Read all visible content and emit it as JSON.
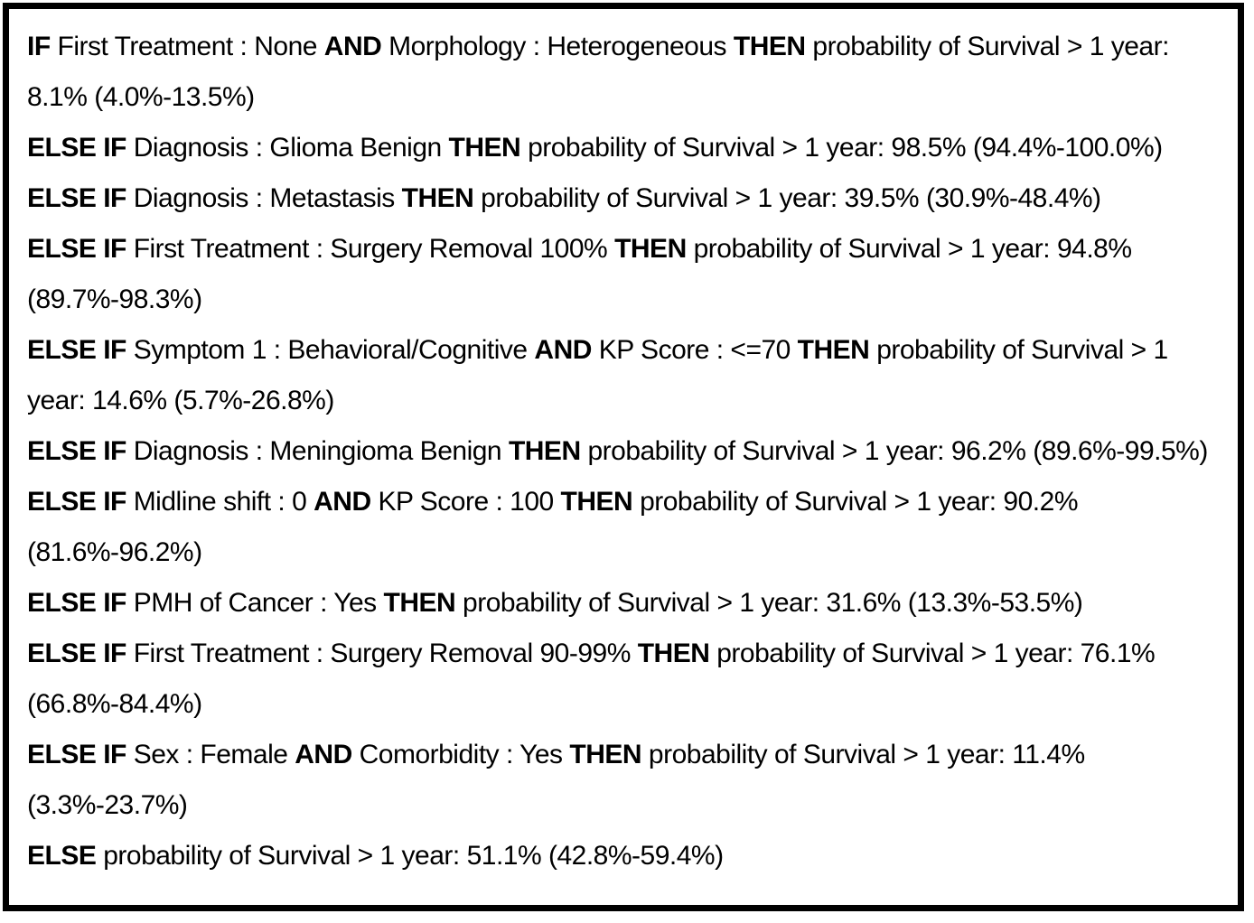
{
  "panel": {
    "description": "decision rule list for 1-year survival probability",
    "colors": {
      "background": "#ffffff",
      "border": "#000000",
      "text": "#000000"
    }
  },
  "keywords": {
    "if": "IF",
    "else_if": "ELSE IF",
    "else": "ELSE",
    "and": "AND",
    "then": "THEN"
  },
  "outcome_label": "probability of Survival > 1 year:",
  "rules": [
    {
      "prefix": "IF",
      "conditions": [
        "First Treatment : None",
        "Morphology : Heterogeneous"
      ],
      "probability": "8.1%",
      "ci": "(4.0%-13.5%)"
    },
    {
      "prefix": "ELSE IF",
      "conditions": [
        "Diagnosis : Glioma Benign"
      ],
      "probability": "98.5%",
      "ci": "(94.4%-100.0%)"
    },
    {
      "prefix": "ELSE IF",
      "conditions": [
        "Diagnosis : Metastasis"
      ],
      "probability": "39.5%",
      "ci": "(30.9%-48.4%)"
    },
    {
      "prefix": "ELSE IF",
      "conditions": [
        "First Treatment : Surgery Removal 100%"
      ],
      "probability": "94.8%",
      "ci": "(89.7%-98.3%)"
    },
    {
      "prefix": "ELSE IF",
      "conditions": [
        "Symptom 1 : Behavioral/Cognitive",
        "KP Score : <=70"
      ],
      "probability": "14.6%",
      "ci": "(5.7%-26.8%)"
    },
    {
      "prefix": "ELSE IF",
      "conditions": [
        "Diagnosis : Meningioma Benign"
      ],
      "probability": "96.2%",
      "ci": "(89.6%-99.5%)"
    },
    {
      "prefix": "ELSE IF",
      "conditions": [
        "Midline shift : 0",
        "KP Score : 100"
      ],
      "probability": "90.2%",
      "ci": "(81.6%-96.2%)"
    },
    {
      "prefix": "ELSE IF",
      "conditions": [
        "PMH of Cancer : Yes"
      ],
      "probability": "31.6%",
      "ci": "(13.3%-53.5%)"
    },
    {
      "prefix": "ELSE IF",
      "conditions": [
        "First Treatment : Surgery Removal 90-99%"
      ],
      "probability": "76.1%",
      "ci": "(66.8%-84.4%)"
    },
    {
      "prefix": "ELSE IF",
      "conditions": [
        "Sex : Female",
        "Comorbidity : Yes"
      ],
      "probability": "11.4%",
      "ci": "(3.3%-23.7%)"
    },
    {
      "prefix": "ELSE",
      "conditions": [],
      "probability": "51.1%",
      "ci": "(42.8%-59.4%)"
    }
  ]
}
